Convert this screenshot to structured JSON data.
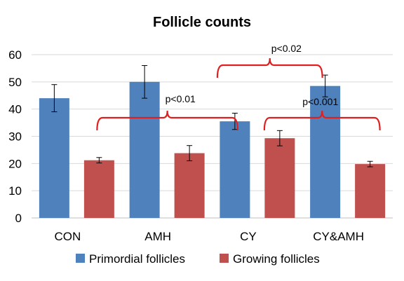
{
  "chart_data": {
    "type": "bar",
    "title": "Follicle counts",
    "xlabel": "",
    "ylabel": "",
    "ylim": [
      0,
      60
    ],
    "yticks": [
      0,
      10,
      20,
      30,
      40,
      50,
      60
    ],
    "grid": true,
    "legend_position": "bottom",
    "categories": [
      "CON",
      "AMH",
      "CY",
      "CY&AMH"
    ],
    "series": [
      {
        "name": "Primordial follicles",
        "color": "#4F81BD",
        "values": [
          44,
          50,
          35.5,
          48.5
        ],
        "errors": [
          5,
          6,
          3,
          4
        ]
      },
      {
        "name": "Growing follicles",
        "color": "#C0504D",
        "values": [
          21.2,
          23.8,
          29.3,
          19.8
        ],
        "errors": [
          1,
          2.8,
          2.8,
          1
        ]
      }
    ],
    "annotations": [
      {
        "label": "p<0.01"
      },
      {
        "label": "p<0.02"
      },
      {
        "label": "p<0.001"
      }
    ],
    "bracket_color": "#E02020"
  }
}
